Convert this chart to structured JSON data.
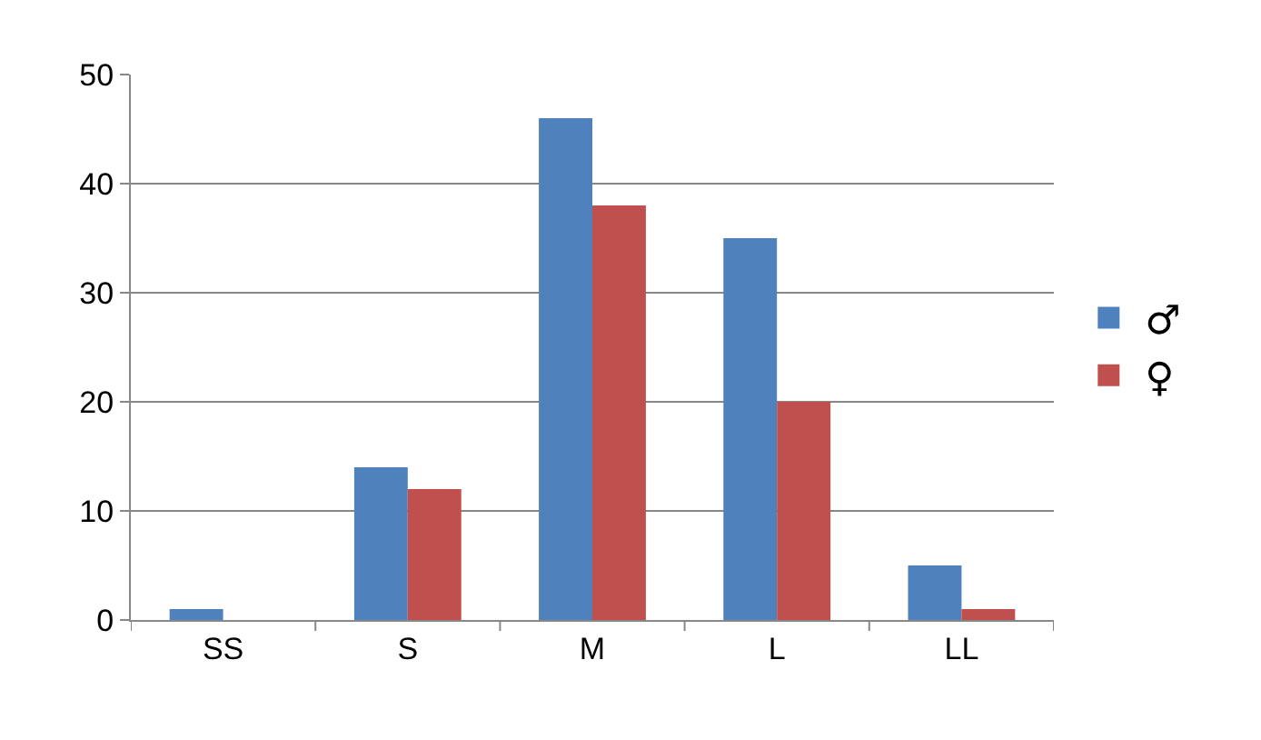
{
  "chart_data": {
    "type": "bar",
    "categories": [
      "SS",
      "S",
      "M",
      "L",
      "LL"
    ],
    "series": [
      {
        "name": "♂",
        "color": "#4f81bd",
        "values": [
          1,
          14,
          46,
          35,
          5
        ]
      },
      {
        "name": "♀",
        "color": "#c0504d",
        "values": [
          0,
          12,
          38,
          20,
          1
        ]
      }
    ],
    "ylim": [
      0,
      50
    ],
    "yticks": [
      0,
      10,
      20,
      30,
      40,
      50
    ],
    "grid": "y",
    "legend": "right"
  }
}
